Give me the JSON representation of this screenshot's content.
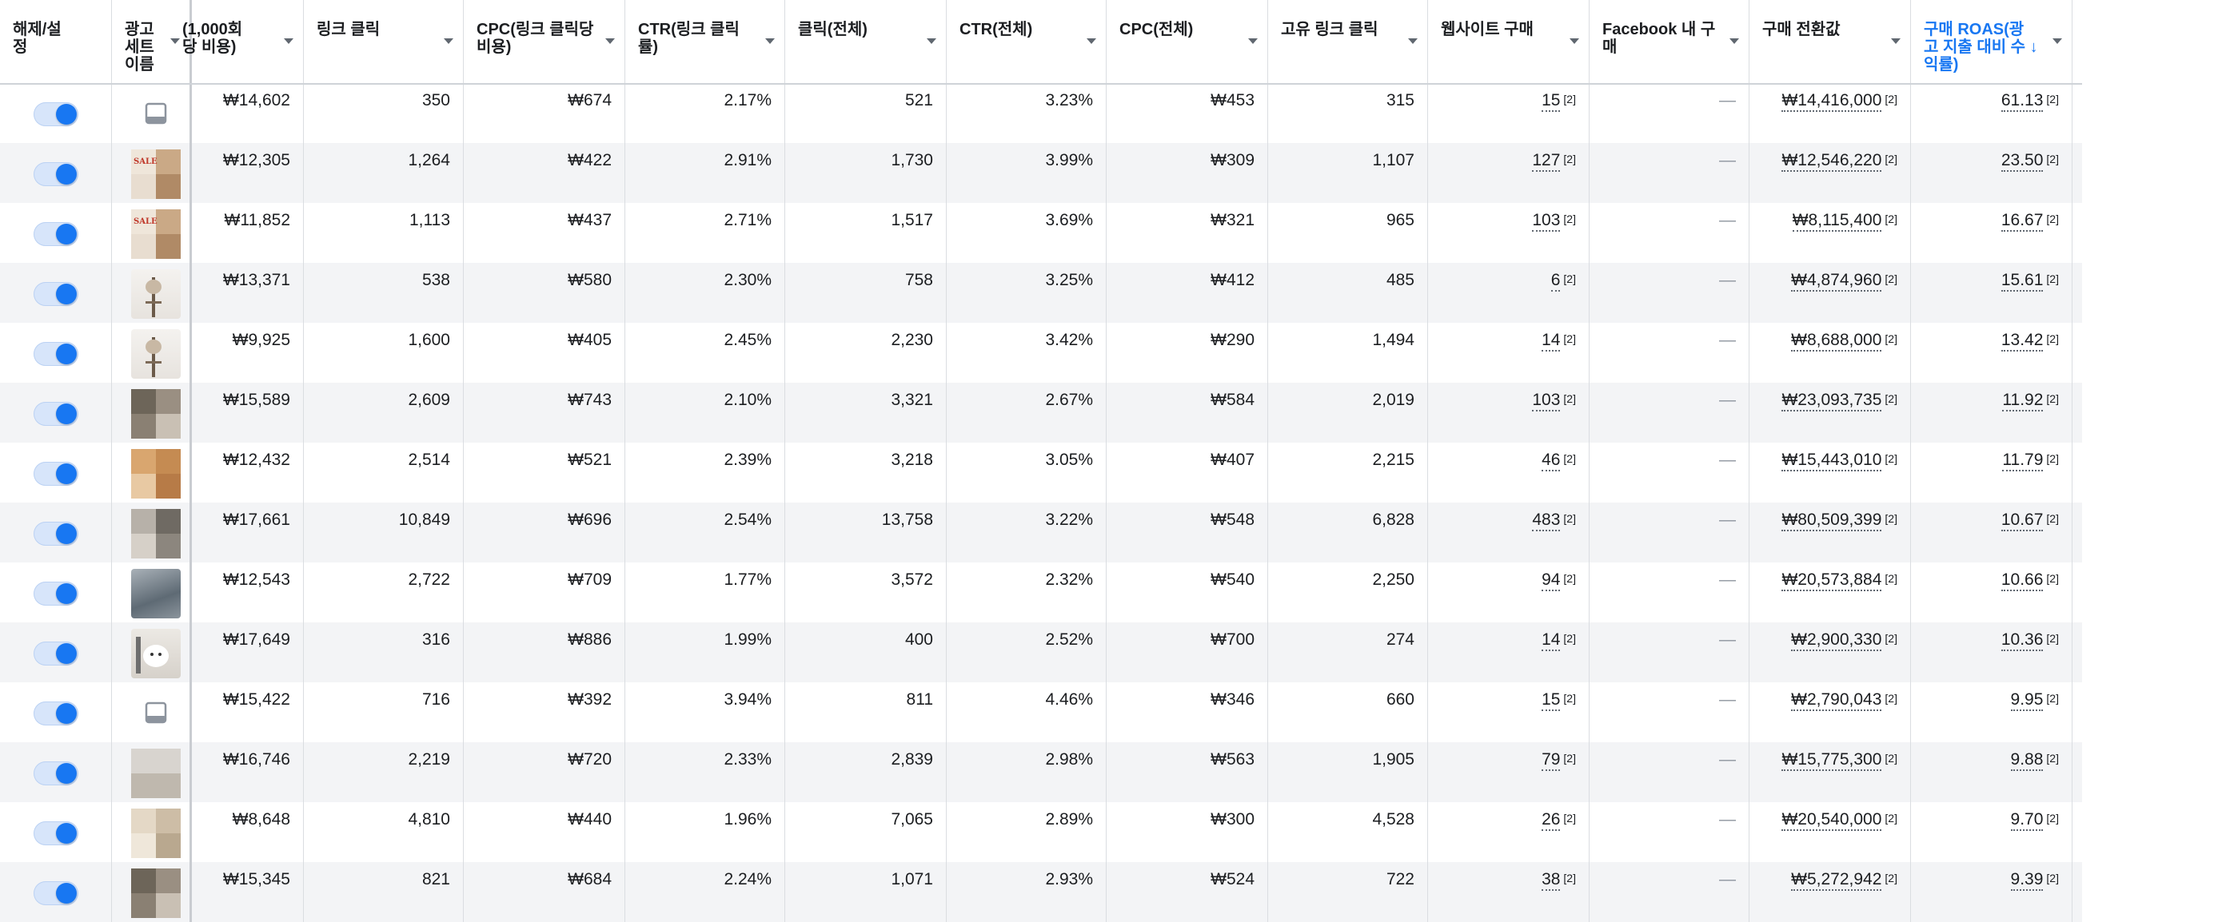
{
  "headers": [
    {
      "label": "해제/설\n정",
      "active": false
    },
    {
      "label": "광고\n세트\n이름",
      "active": false
    },
    {
      "label": "(1,000회\n당 비용)",
      "active": false
    },
    {
      "label": "링크 클릭",
      "active": false
    },
    {
      "label": "CPC(링크 클릭당\n비용)",
      "active": false
    },
    {
      "label": "CTR(링크 클릭\n률)",
      "active": false
    },
    {
      "label": "클릭(전체)",
      "active": false
    },
    {
      "label": "CTR(전체)",
      "active": false
    },
    {
      "label": "CPC(전체)",
      "active": false
    },
    {
      "label": "고유 링크 클릭",
      "active": false
    },
    {
      "label": "웹사이트 구매",
      "active": false
    },
    {
      "label": "Facebook 내 구\n매",
      "active": false
    },
    {
      "label": "구매 전환값",
      "active": false
    },
    {
      "label": "구매 ROAS(광\n고 지출 대비 수 ↓\n익률)",
      "active": true
    }
  ],
  "footnote": "[2]",
  "dash": "—",
  "rows": [
    {
      "thumb": "placeholder",
      "cpm": "₩14,602",
      "link_clicks": "350",
      "cpc_link": "₩674",
      "ctr_link": "2.17%",
      "clicks_all": "521",
      "ctr_all": "3.23%",
      "cpc_all": "₩453",
      "unique_link_clicks": "315",
      "web_purchases": "15",
      "fb_purchases": "—",
      "purchase_value": "₩14,416,000",
      "roas": "61.13"
    },
    {
      "thumb": "sale",
      "cpm": "₩12,305",
      "link_clicks": "1,264",
      "cpc_link": "₩422",
      "ctr_link": "2.91%",
      "clicks_all": "1,730",
      "ctr_all": "3.99%",
      "cpc_all": "₩309",
      "unique_link_clicks": "1,107",
      "web_purchases": "127",
      "fb_purchases": "—",
      "purchase_value": "₩12,546,220",
      "roas": "23.50"
    },
    {
      "thumb": "sale",
      "cpm": "₩11,852",
      "link_clicks": "1,113",
      "cpc_link": "₩437",
      "ctr_link": "2.71%",
      "clicks_all": "1,517",
      "ctr_all": "3.69%",
      "cpc_all": "₩321",
      "unique_link_clicks": "965",
      "web_purchases": "103",
      "fb_purchases": "—",
      "purchase_value": "₩8,115,400",
      "roas": "16.67"
    },
    {
      "thumb": "stand",
      "cpm": "₩13,371",
      "link_clicks": "538",
      "cpc_link": "₩580",
      "ctr_link": "2.30%",
      "clicks_all": "758",
      "ctr_all": "3.25%",
      "cpc_all": "₩412",
      "unique_link_clicks": "485",
      "web_purchases": "6",
      "fb_purchases": "—",
      "purchase_value": "₩4,874,960",
      "roas": "15.61"
    },
    {
      "thumb": "stand",
      "cpm": "₩9,925",
      "link_clicks": "1,600",
      "cpc_link": "₩405",
      "ctr_link": "2.45%",
      "clicks_all": "2,230",
      "ctr_all": "3.42%",
      "cpc_all": "₩290",
      "unique_link_clicks": "1,494",
      "web_purchases": "14",
      "fb_purchases": "—",
      "purchase_value": "₩8,688,000",
      "roas": "13.42"
    },
    {
      "thumb": "grid-dark",
      "cpm": "₩15,589",
      "link_clicks": "2,609",
      "cpc_link": "₩743",
      "ctr_link": "2.10%",
      "clicks_all": "3,321",
      "ctr_all": "2.67%",
      "cpc_all": "₩584",
      "unique_link_clicks": "2,019",
      "web_purchases": "103",
      "fb_purchases": "—",
      "purchase_value": "₩23,093,735",
      "roas": "11.92"
    },
    {
      "thumb": "warm",
      "cpm": "₩12,432",
      "link_clicks": "2,514",
      "cpc_link": "₩521",
      "ctr_link": "2.39%",
      "clicks_all": "3,218",
      "ctr_all": "3.05%",
      "cpc_all": "₩407",
      "unique_link_clicks": "2,215",
      "web_purchases": "46",
      "fb_purchases": "—",
      "purchase_value": "₩15,443,010",
      "roas": "11.79"
    },
    {
      "thumb": "grid-grey",
      "cpm": "₩17,661",
      "link_clicks": "10,849",
      "cpc_link": "₩696",
      "ctr_link": "2.54%",
      "clicks_all": "13,758",
      "ctr_all": "3.22%",
      "cpc_all": "₩548",
      "unique_link_clicks": "6,828",
      "web_purchases": "483",
      "fb_purchases": "—",
      "purchase_value": "₩80,509,399",
      "roas": "10.67"
    },
    {
      "thumb": "slate",
      "cpm": "₩12,543",
      "link_clicks": "2,722",
      "cpc_link": "₩709",
      "ctr_link": "1.77%",
      "clicks_all": "3,572",
      "ctr_all": "2.32%",
      "cpc_all": "₩540",
      "unique_link_clicks": "2,250",
      "web_purchases": "94",
      "fb_purchases": "—",
      "purchase_value": "₩20,573,884",
      "roas": "10.66"
    },
    {
      "thumb": "white-dog",
      "cpm": "₩17,649",
      "link_clicks": "316",
      "cpc_link": "₩886",
      "ctr_link": "1.99%",
      "clicks_all": "400",
      "ctr_all": "2.52%",
      "cpc_all": "₩700",
      "unique_link_clicks": "274",
      "web_purchases": "14",
      "fb_purchases": "—",
      "purchase_value": "₩2,900,330",
      "roas": "10.36"
    },
    {
      "thumb": "placeholder",
      "cpm": "₩15,422",
      "link_clicks": "716",
      "cpc_link": "₩392",
      "ctr_link": "3.94%",
      "clicks_all": "811",
      "ctr_all": "4.46%",
      "cpc_all": "₩346",
      "unique_link_clicks": "660",
      "web_purchases": "15",
      "fb_purchases": "—",
      "purchase_value": "₩2,790,043",
      "roas": "9.95"
    },
    {
      "thumb": "two-stack",
      "cpm": "₩16,746",
      "link_clicks": "2,219",
      "cpc_link": "₩720",
      "ctr_link": "2.33%",
      "clicks_all": "2,839",
      "ctr_all": "2.98%",
      "cpc_all": "₩563",
      "unique_link_clicks": "1,905",
      "web_purchases": "79",
      "fb_purchases": "—",
      "purchase_value": "₩15,775,300",
      "roas": "9.88"
    },
    {
      "thumb": "grid-beige",
      "cpm": "₩8,648",
      "link_clicks": "4,810",
      "cpc_link": "₩440",
      "ctr_link": "1.96%",
      "clicks_all": "7,065",
      "ctr_all": "2.89%",
      "cpc_all": "₩300",
      "unique_link_clicks": "4,528",
      "web_purchases": "26",
      "fb_purchases": "—",
      "purchase_value": "₩20,540,000",
      "roas": "9.70"
    },
    {
      "thumb": "grid-dark",
      "cpm": "₩15,345",
      "link_clicks": "821",
      "cpc_link": "₩684",
      "ctr_link": "2.24%",
      "clicks_all": "1,071",
      "ctr_all": "2.93%",
      "cpc_all": "₩524",
      "unique_link_clicks": "722",
      "web_purchases": "38",
      "fb_purchases": "—",
      "purchase_value": "₩5,272,942",
      "roas": "9.39"
    }
  ],
  "colors": {
    "accent": "#1877f2",
    "row_alt": "#f3f4f6",
    "border": "#dadde1"
  }
}
